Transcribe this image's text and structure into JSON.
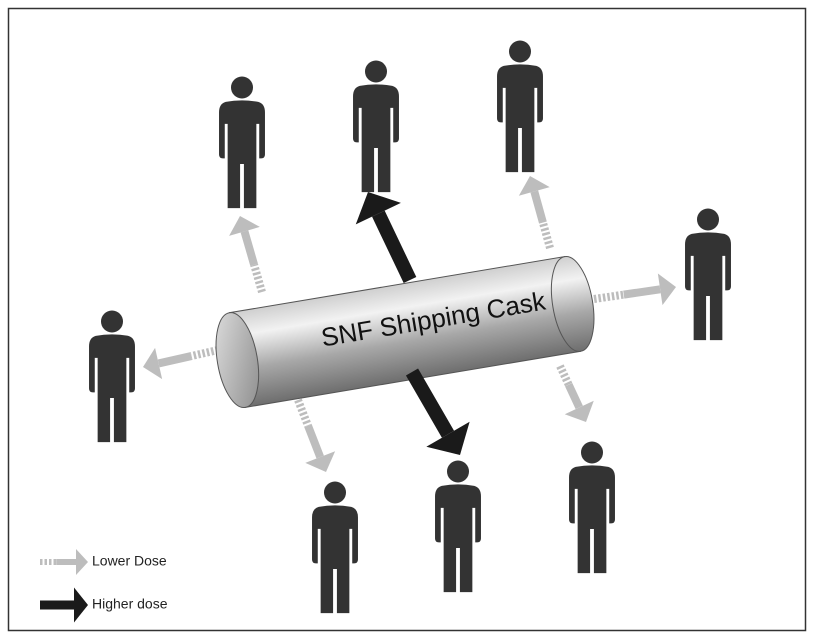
{
  "cask_label": "SNF Shipping Cask",
  "legend": {
    "lower": "Lower Dose",
    "higher": "Higher dose"
  }
}
